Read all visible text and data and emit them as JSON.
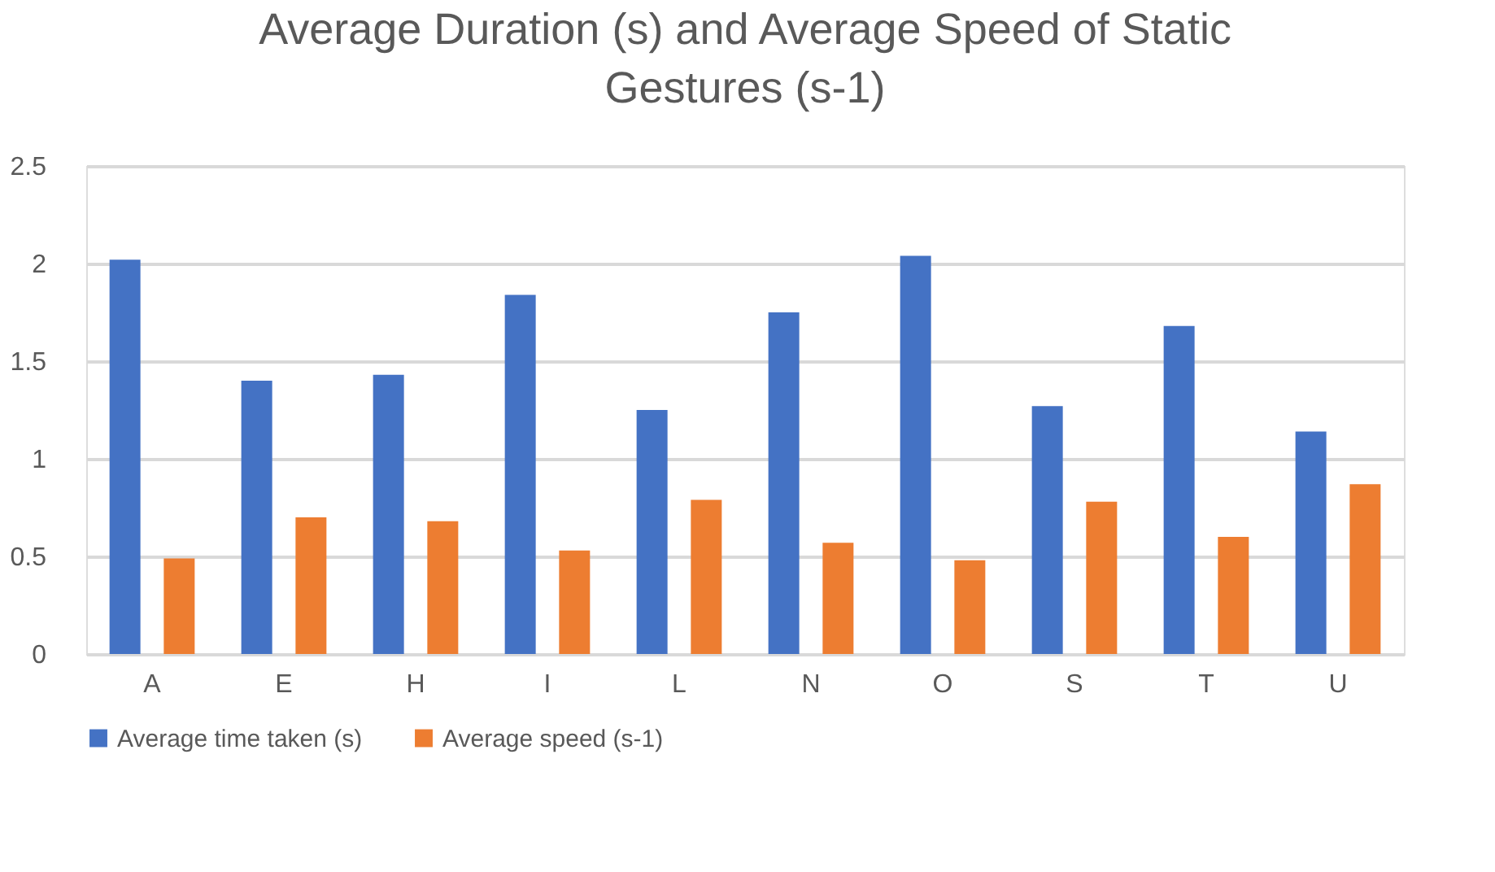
{
  "chart_data": {
    "type": "bar",
    "title": "Average Duration (s) and Average Speed of Static Gestures (s-1)",
    "categories": [
      "A",
      "E",
      "H",
      "I",
      "L",
      "N",
      "O",
      "S",
      "T",
      "U"
    ],
    "series": [
      {
        "name": "Average time taken (s)",
        "color": "#4472c4",
        "values": [
          2.02,
          1.4,
          1.43,
          1.84,
          1.25,
          1.75,
          2.04,
          1.27,
          1.68,
          1.14
        ]
      },
      {
        "name": "Average speed (s-1)",
        "color": "#ed7d31",
        "values": [
          0.49,
          0.7,
          0.68,
          0.53,
          0.79,
          0.57,
          0.48,
          0.78,
          0.6,
          0.87
        ]
      }
    ],
    "ylim": [
      0,
      2.5
    ],
    "yticks": [
      0,
      0.5,
      1,
      1.5,
      2,
      2.5
    ],
    "grid": "y",
    "legend": "bottom"
  }
}
